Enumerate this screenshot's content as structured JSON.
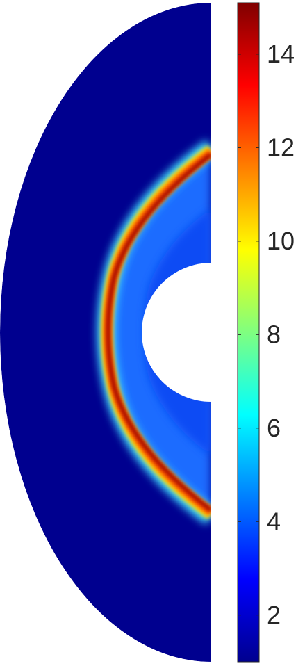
{
  "chart_data": {
    "type": "heatmap",
    "title": "",
    "xlabel": "",
    "ylabel": "",
    "description_shape": "half-annulus",
    "colormap": "jet",
    "colorbar": {
      "range": [
        1,
        15.1
      ],
      "ticks": [
        2,
        4,
        6,
        8,
        10,
        12,
        14
      ],
      "tick_labels": [
        "2",
        "4",
        "6",
        "8",
        "10",
        "12",
        "14"
      ],
      "placement": "right"
    },
    "field": {
      "background_value": 1.1,
      "shock_peak_value": 14.8,
      "post_shock_value": 4.3,
      "shock_edge_value": 6.5
    }
  }
}
